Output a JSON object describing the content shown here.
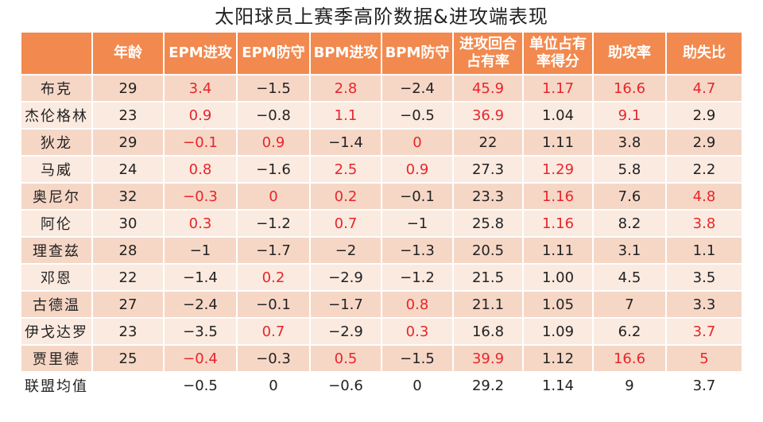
{
  "title": "太阳球员上赛季高阶数据&进攻端表现",
  "accent_color": "#f2894e",
  "highlight_color": "#e8252b",
  "columns": [
    "",
    "年龄",
    "EPM进攻",
    "EPM防守",
    "BPM进攻",
    "BPM防守",
    "进攻回合\n占有率",
    "单位占有\n率得分",
    "助攻率",
    "助失比"
  ],
  "rows": [
    {
      "cells": [
        "布克",
        "29",
        "3.4",
        "−1.5",
        "2.8",
        "−2.4",
        "45.9",
        "1.17",
        "16.6",
        "4.7"
      ],
      "highlight": [
        2,
        4,
        6,
        7,
        8,
        9
      ]
    },
    {
      "cells": [
        "杰伦格林",
        "23",
        "0.9",
        "−0.8",
        "1.1",
        "−0.5",
        "36.9",
        "1.04",
        "9.1",
        "2.9"
      ],
      "highlight": [
        2,
        4,
        6,
        8
      ]
    },
    {
      "cells": [
        "狄龙",
        "29",
        "−0.1",
        "0.9",
        "−1.4",
        "0",
        "22",
        "1.11",
        "3.8",
        "2.9"
      ],
      "highlight": [
        2,
        3,
        5
      ]
    },
    {
      "cells": [
        "马威",
        "24",
        "0.8",
        "−1.6",
        "2.5",
        "0.9",
        "27.3",
        "1.29",
        "5.8",
        "2.2"
      ],
      "highlight": [
        2,
        4,
        5,
        7
      ]
    },
    {
      "cells": [
        "奥尼尔",
        "32",
        "−0.3",
        "0",
        "0.2",
        "−0.1",
        "23.3",
        "1.16",
        "7.6",
        "4.8"
      ],
      "highlight": [
        2,
        3,
        4,
        7,
        9
      ]
    },
    {
      "cells": [
        "阿伦",
        "30",
        "0.3",
        "−1.2",
        "0.7",
        "−1",
        "25.8",
        "1.16",
        "8.2",
        "3.8"
      ],
      "highlight": [
        2,
        4,
        7,
        9
      ]
    },
    {
      "cells": [
        "理查兹",
        "28",
        "−1",
        "−1.7",
        "−2",
        "−1.3",
        "20.5",
        "1.11",
        "3.1",
        "1.1"
      ],
      "highlight": []
    },
    {
      "cells": [
        "邓恩",
        "22",
        "−1.4",
        "0.2",
        "−2.9",
        "−1.2",
        "21.5",
        "1.00",
        "4.5",
        "3.5"
      ],
      "highlight": [
        3
      ]
    },
    {
      "cells": [
        "古德温",
        "27",
        "−2.4",
        "−0.1",
        "−1.7",
        "0.8",
        "21.1",
        "1.05",
        "7",
        "3.3"
      ],
      "highlight": [
        5
      ]
    },
    {
      "cells": [
        "伊戈达罗",
        "23",
        "−3.5",
        "0.7",
        "−2.9",
        "0.3",
        "16.8",
        "1.09",
        "6.2",
        "3.7"
      ],
      "highlight": [
        3,
        5,
        9
      ]
    },
    {
      "cells": [
        "贾里德",
        "25",
        "−0.4",
        "−0.3",
        "0.5",
        "−1.5",
        "39.9",
        "1.12",
        "16.6",
        "5"
      ],
      "highlight": [
        2,
        4,
        6,
        8,
        9
      ]
    }
  ],
  "summary": {
    "cells": [
      "联盟均值",
      "",
      "−0.5",
      "0",
      "−0.6",
      "0",
      "29.2",
      "1.14",
      "9",
      "3.7"
    ]
  }
}
